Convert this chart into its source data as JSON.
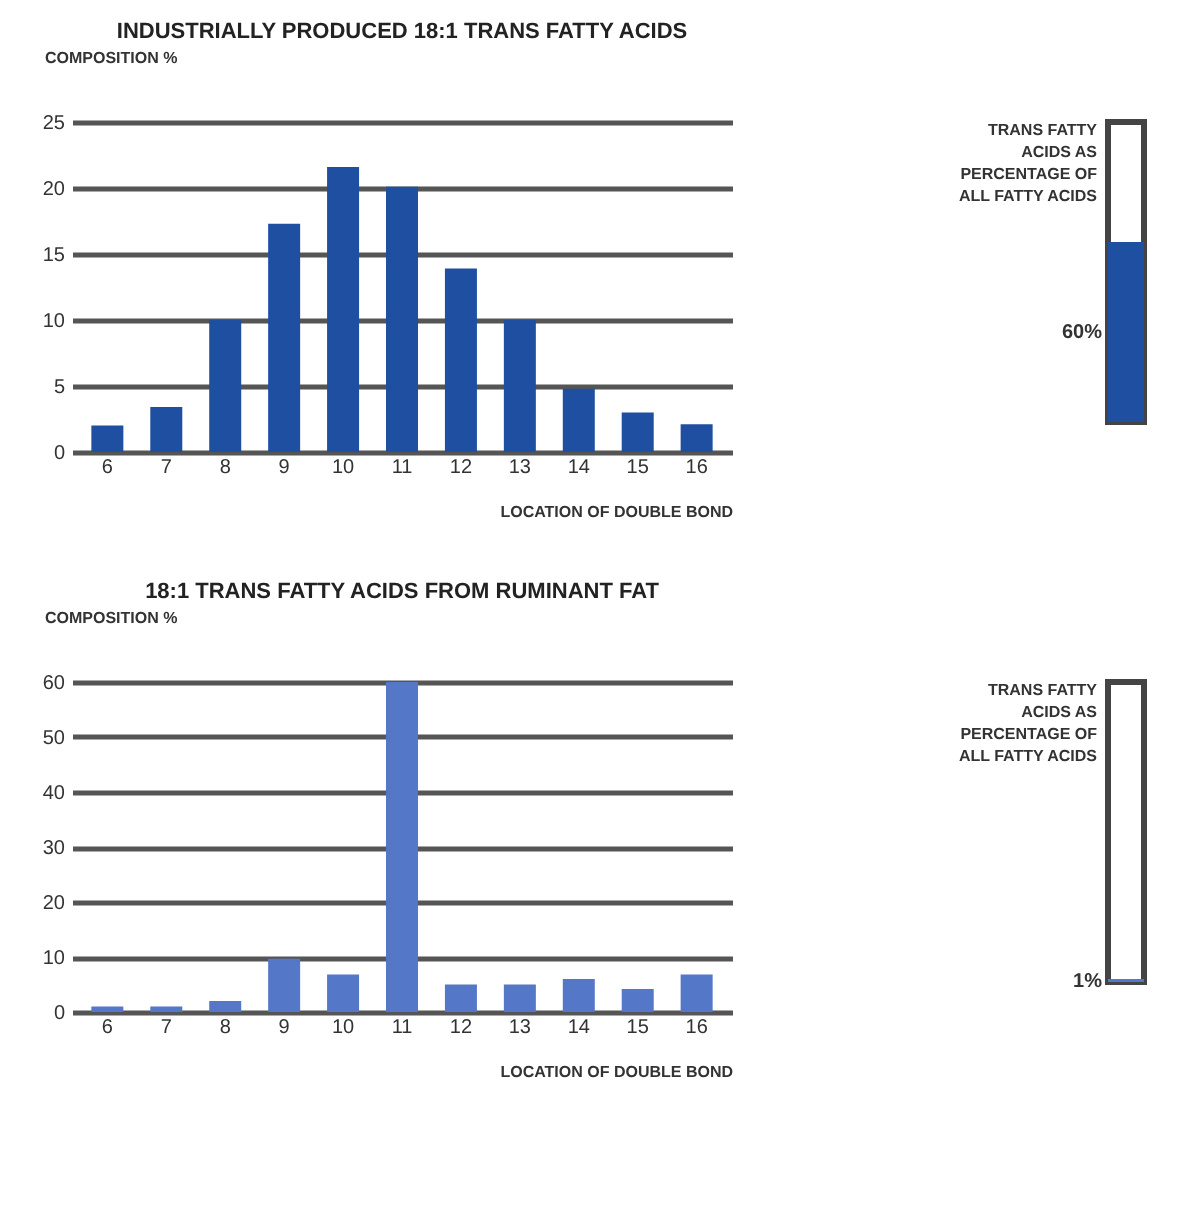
{
  "chart_data": [
    {
      "type": "bar",
      "title": "INDUSTRIALLY PRODUCED 18:1 TRANS FATTY ACIDS",
      "ylabel": "COMPOSITION %",
      "xlabel": "LOCATION OF DOUBLE BOND",
      "categories": [
        "6",
        "7",
        "8",
        "9",
        "10",
        "11",
        "12",
        "13",
        "14",
        "15",
        "16"
      ],
      "values": [
        2.0,
        3.4,
        10,
        17.3,
        21.6,
        20.1,
        13.9,
        10,
        4.8,
        3.0,
        2.1
      ],
      "color": "#1f4fa0",
      "ylim": [
        0,
        25
      ],
      "yticks": [
        0,
        5,
        10,
        15,
        20,
        25
      ],
      "grid": "y"
    },
    {
      "type": "other",
      "values": [
        60
      ],
      "value_labels": [
        "60%"
      ],
      "color": "#1f4fa0",
      "annotations": [
        "TRANS FATTY ACIDS AS PERCENTAGE OF ALL FATTY ACIDS"
      ]
    },
    {
      "type": "bar",
      "title": "18:1 TRANS FATTY ACIDS FROM RUMINANT FAT",
      "ylabel": "COMPOSITION %",
      "xlabel": "LOCATION OF DOUBLE BOND",
      "categories": [
        "6",
        "7",
        "8",
        "9",
        "10",
        "11",
        "12",
        "13",
        "14",
        "15",
        "16"
      ],
      "values": [
        1,
        1,
        2,
        9.7,
        6.8,
        60,
        5,
        5,
        6,
        4.2,
        6.8
      ],
      "color": "#5577c8",
      "ylim": [
        0,
        60
      ],
      "yticks": [
        0,
        10,
        20,
        30,
        40,
        50,
        60
      ],
      "grid": "y"
    },
    {
      "type": "other",
      "values": [
        1
      ],
      "value_labels": [
        "1%"
      ],
      "color": "#5577c8",
      "annotations": [
        "TRANS FATTY ACIDS AS PERCENTAGE OF ALL FATTY ACIDS"
      ]
    }
  ]
}
